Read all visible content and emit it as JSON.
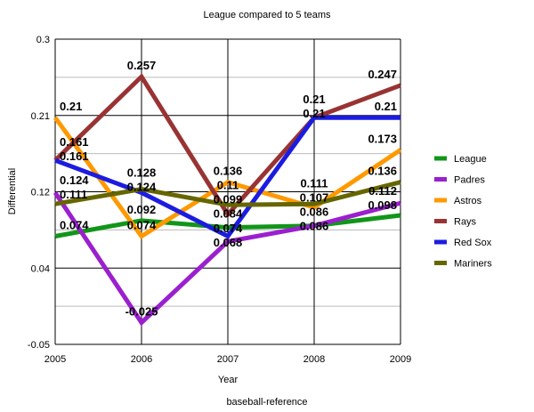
{
  "chart_data": {
    "type": "line",
    "title": "League compared to 5 teams",
    "xlabel": "Year",
    "ylabel": "Differential",
    "source": "baseball-reference",
    "x": [
      "2005",
      "2006",
      "2007",
      "2008",
      "2009"
    ],
    "ylim": [
      -0.05,
      0.3
    ],
    "yticks": [
      "0.3",
      "0.21",
      "0.12",
      "0.04",
      "-0.05"
    ],
    "grid": true,
    "legend_position": "right",
    "series": [
      {
        "name": "League",
        "color": "#109618",
        "values": [
          0.074,
          0.092,
          0.084,
          0.086,
          0.098
        ]
      },
      {
        "name": "Padres",
        "color": "#9b1fcf",
        "values": [
          0.124,
          -0.025,
          0.068,
          0.086,
          0.112
        ]
      },
      {
        "name": "Astros",
        "color": "#ff9900",
        "values": [
          0.21,
          0.074,
          0.136,
          0.107,
          0.173
        ]
      },
      {
        "name": "Rays",
        "color": "#993333",
        "values": [
          0.161,
          0.257,
          0.099,
          0.21,
          0.247
        ]
      },
      {
        "name": "Red Sox",
        "color": "#1c1ce0",
        "values": [
          0.161,
          0.124,
          0.074,
          0.21,
          0.21
        ]
      },
      {
        "name": "Mariners",
        "color": "#666600",
        "values": [
          0.111,
          0.128,
          0.11,
          0.111,
          0.136
        ]
      }
    ]
  }
}
